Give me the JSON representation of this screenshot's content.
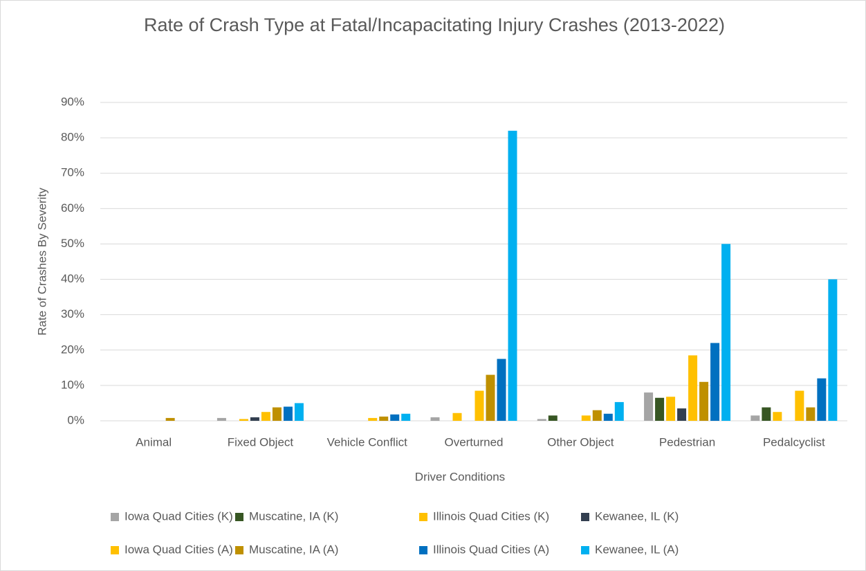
{
  "chart_data": {
    "type": "bar",
    "title": "Rate of Crash Type at Fatal/Incapacitating Injury Crashes (2013-2022)",
    "x_label": "Driver Conditions",
    "y_label": "Rate of Crashes By Severity",
    "categories": [
      "Animal",
      "Fixed Object",
      "Vehicle Conflict",
      "Overturned",
      "Other Object",
      "Pedestrian",
      "Pedalcyclist"
    ],
    "series": [
      {
        "name": "Iowa Quad Cities  (K)",
        "color": "#a5a5a5",
        "values": [
          0,
          0.8,
          0,
          1,
          0.5,
          8,
          1.5
        ]
      },
      {
        "name": "Muscatine, IA  (K)",
        "color": "#375623",
        "values": [
          0,
          0,
          0,
          0,
          1.5,
          6.5,
          3.8
        ]
      },
      {
        "name": "Illinois Quad Cities (K)",
        "color": "#ffc000",
        "values": [
          0,
          0.5,
          0,
          2.2,
          0,
          6.8,
          2.5
        ]
      },
      {
        "name": "Kewanee, IL (K)",
        "color": "#333f50",
        "values": [
          0,
          1,
          0,
          0,
          0,
          3.5,
          0
        ]
      },
      {
        "name": "Iowa Quad Cities  (A)",
        "color": "#ffc000",
        "values": [
          0,
          2.5,
          0.8,
          8.5,
          1.5,
          18.5,
          8.5
        ]
      },
      {
        "name": "Muscatine, IA  (A)",
        "color": "#bf9000",
        "values": [
          0.8,
          3.8,
          1.2,
          13,
          3,
          11,
          3.8
        ]
      },
      {
        "name": "Illinois Quad Cities (A)",
        "color": "#0070c0",
        "values": [
          0,
          4,
          1.8,
          17.5,
          2,
          22,
          12
        ]
      },
      {
        "name": "Kewanee, IL (A)",
        "color": "#00b0f0",
        "values": [
          0,
          5,
          2,
          82,
          5.3,
          50,
          40
        ]
      }
    ],
    "ylim": [
      0,
      90
    ],
    "yticks": [
      {
        "value": 0,
        "label": "0%"
      },
      {
        "value": 10,
        "label": "10%"
      },
      {
        "value": 20,
        "label": "20%"
      },
      {
        "value": 30,
        "label": "30%"
      },
      {
        "value": 40,
        "label": "40%"
      },
      {
        "value": 50,
        "label": "50%"
      },
      {
        "value": 60,
        "label": "60%"
      },
      {
        "value": 70,
        "label": "70%"
      },
      {
        "value": 80,
        "label": "80%"
      },
      {
        "value": 90,
        "label": "90%"
      }
    ],
    "grid": true
  }
}
